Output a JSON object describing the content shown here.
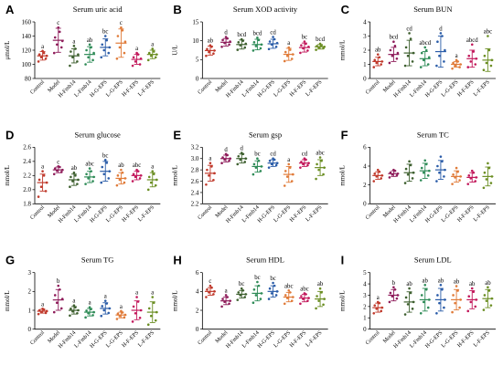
{
  "figure": {
    "groups": [
      "Control",
      "Model",
      "H-Fmb14",
      "L-Fmb14",
      "H-G-EPS",
      "L-G-EPS",
      "H-F-EPS",
      "L-F-EPS"
    ],
    "colors": [
      "#c0392b",
      "#8e1c5a",
      "#3d5f2e",
      "#2e8b57",
      "#2a5ca8",
      "#e07b39",
      "#c2185b",
      "#6b8e23"
    ]
  },
  "chart_data": [
    {
      "panel": "A",
      "type": "scatter",
      "title": "Serum uric acid",
      "ylabel": "μmol/L",
      "ylim": [
        80,
        160
      ],
      "yticks": [
        80,
        100,
        120,
        140,
        160
      ],
      "letters": [
        "a",
        "c",
        "a",
        "ab",
        "bc",
        "c",
        "a",
        "a"
      ],
      "series": [
        {
          "mean": 112,
          "sd": 6,
          "points": [
            104,
            108,
            110,
            112,
            114,
            116,
            119
          ]
        },
        {
          "mean": 134,
          "sd": 17,
          "points": [
            116,
            124,
            128,
            133,
            138,
            146,
            152
          ]
        },
        {
          "mean": 112,
          "sd": 10,
          "points": [
            98,
            104,
            110,
            114,
            118,
            122,
            126
          ]
        },
        {
          "mean": 114,
          "sd": 11,
          "points": [
            100,
            106,
            110,
            116,
            120,
            124,
            128
          ]
        },
        {
          "mean": 124,
          "sd": 12,
          "points": [
            110,
            116,
            120,
            124,
            128,
            134,
            140
          ]
        },
        {
          "mean": 130,
          "sd": 20,
          "points": [
            108,
            116,
            124,
            132,
            140,
            148,
            152
          ]
        },
        {
          "mean": 107,
          "sd": 7,
          "points": [
            98,
            100,
            104,
            108,
            110,
            114,
            116
          ]
        },
        {
          "mean": 114,
          "sd": 6,
          "points": [
            106,
            110,
            112,
            114,
            116,
            118,
            122
          ]
        }
      ]
    },
    {
      "panel": "B",
      "type": "scatter",
      "title": "Serum XOD activity",
      "ylabel": "U/L",
      "ylim": [
        0,
        15
      ],
      "yticks": [
        0,
        5,
        10,
        15
      ],
      "letters": [
        "ab",
        "d",
        "bcd",
        "bcd",
        "cd",
        "a",
        "bc",
        "bcd"
      ],
      "series": [
        {
          "mean": 7.4,
          "sd": 1.2,
          "points": [
            6.0,
            6.6,
            7.0,
            7.4,
            7.8,
            8.4,
            8.8
          ]
        },
        {
          "mean": 9.6,
          "sd": 1.0,
          "points": [
            8.4,
            9.0,
            9.4,
            9.8,
            10.2,
            10.6,
            11.0
          ]
        },
        {
          "mean": 9.0,
          "sd": 1.2,
          "points": [
            7.6,
            8.2,
            8.8,
            9.2,
            9.6,
            10.0,
            10.4
          ]
        },
        {
          "mean": 9.0,
          "sd": 1.4,
          "points": [
            7.4,
            8.0,
            8.6,
            9.0,
            9.6,
            10.2,
            10.8
          ]
        },
        {
          "mean": 9.2,
          "sd": 1.2,
          "points": [
            7.8,
            8.4,
            9.0,
            9.4,
            9.8,
            10.4,
            11.0
          ]
        },
        {
          "mean": 6.4,
          "sd": 1.6,
          "points": [
            4.6,
            5.2,
            6.0,
            6.4,
            7.0,
            7.6,
            8.2
          ]
        },
        {
          "mean": 8.2,
          "sd": 1.2,
          "points": [
            6.8,
            7.4,
            8.0,
            8.4,
            8.8,
            9.2,
            9.8
          ]
        },
        {
          "mean": 8.4,
          "sd": 0.6,
          "points": [
            7.6,
            8.0,
            8.2,
            8.4,
            8.6,
            8.8,
            9.2
          ]
        }
      ]
    },
    {
      "panel": "C",
      "type": "scatter",
      "title": "Serum BUN",
      "ylabel": "mmol/L",
      "ylim": [
        0,
        4
      ],
      "yticks": [
        0,
        1,
        2,
        3,
        4
      ],
      "letters": [
        "ab",
        "bcd",
        "cd",
        "abcd",
        "d",
        "a",
        "abcd",
        "abc"
      ],
      "series": [
        {
          "mean": 1.2,
          "sd": 0.3,
          "points": [
            0.8,
            1.0,
            1.1,
            1.2,
            1.3,
            1.5,
            1.7
          ]
        },
        {
          "mean": 1.7,
          "sd": 0.5,
          "points": [
            1.1,
            1.4,
            1.6,
            1.8,
            2.0,
            2.3,
            2.6
          ]
        },
        {
          "mean": 1.8,
          "sd": 0.9,
          "points": [
            0.9,
            1.2,
            1.6,
            1.8,
            2.2,
            2.8,
            3.2
          ]
        },
        {
          "mean": 1.4,
          "sd": 0.5,
          "points": [
            0.8,
            1.0,
            1.3,
            1.5,
            1.8,
            2.0,
            2.2
          ]
        },
        {
          "mean": 1.9,
          "sd": 1.1,
          "points": [
            0.9,
            1.2,
            1.6,
            2.0,
            2.6,
            3.0,
            3.2
          ]
        },
        {
          "mean": 1.0,
          "sd": 0.2,
          "points": [
            0.7,
            0.8,
            0.9,
            1.0,
            1.1,
            1.2,
            1.3
          ]
        },
        {
          "mean": 1.4,
          "sd": 0.6,
          "points": [
            0.8,
            1.0,
            1.2,
            1.4,
            1.6,
            1.9,
            2.4
          ]
        },
        {
          "mean": 1.3,
          "sd": 0.8,
          "points": [
            0.6,
            0.9,
            1.1,
            1.3,
            1.6,
            2.0,
            3.0
          ]
        }
      ]
    },
    {
      "panel": "D",
      "type": "scatter",
      "title": "Serum glucose",
      "ylabel": "mmol/L",
      "ylim": [
        1.8,
        2.6
      ],
      "yticks": [
        1.8,
        2.0,
        2.2,
        2.4,
        2.6
      ],
      "letters": [
        "a",
        "c",
        "ab",
        "abc",
        "bc",
        "ab",
        "abc",
        "a"
      ],
      "series": [
        {
          "mean": 2.1,
          "sd": 0.12,
          "points": [
            1.9,
            1.98,
            2.04,
            2.1,
            2.14,
            2.2,
            2.26
          ]
        },
        {
          "mean": 2.28,
          "sd": 0.04,
          "points": [
            2.22,
            2.25,
            2.27,
            2.28,
            2.3,
            2.32,
            2.33
          ]
        },
        {
          "mean": 2.14,
          "sd": 0.08,
          "points": [
            2.04,
            2.08,
            2.12,
            2.14,
            2.18,
            2.2,
            2.24
          ]
        },
        {
          "mean": 2.18,
          "sd": 0.08,
          "points": [
            2.08,
            2.12,
            2.16,
            2.18,
            2.22,
            2.26,
            2.3
          ]
        },
        {
          "mean": 2.26,
          "sd": 0.14,
          "points": [
            2.1,
            2.16,
            2.22,
            2.26,
            2.32,
            2.38,
            2.42
          ]
        },
        {
          "mean": 2.16,
          "sd": 0.08,
          "points": [
            2.06,
            2.1,
            2.14,
            2.16,
            2.2,
            2.24,
            2.28
          ]
        },
        {
          "mean": 2.2,
          "sd": 0.06,
          "points": [
            2.12,
            2.16,
            2.18,
            2.2,
            2.22,
            2.26,
            2.28
          ]
        },
        {
          "mean": 2.14,
          "sd": 0.1,
          "points": [
            2.0,
            2.06,
            2.1,
            2.14,
            2.18,
            2.22,
            2.26
          ]
        }
      ]
    },
    {
      "panel": "E",
      "type": "scatter",
      "title": "Serum gsp",
      "ylabel": "mmol/L",
      "ylim": [
        2.2,
        3.2
      ],
      "yticks": [
        2.2,
        2.4,
        2.6,
        2.8,
        3.0,
        3.2
      ],
      "letters": [
        "a",
        "d",
        "d",
        "bc",
        "cd",
        "a",
        "cd",
        "abc"
      ],
      "series": [
        {
          "mean": 2.74,
          "sd": 0.14,
          "points": [
            2.54,
            2.62,
            2.7,
            2.74,
            2.8,
            2.86,
            2.92
          ]
        },
        {
          "mean": 3.0,
          "sd": 0.06,
          "points": [
            2.92,
            2.96,
            2.98,
            3.0,
            3.02,
            3.06,
            3.08
          ]
        },
        {
          "mean": 3.0,
          "sd": 0.08,
          "points": [
            2.9,
            2.94,
            2.98,
            3.0,
            3.04,
            3.08,
            3.1
          ]
        },
        {
          "mean": 2.86,
          "sd": 0.1,
          "points": [
            2.72,
            2.78,
            2.84,
            2.86,
            2.9,
            2.96,
            3.0
          ]
        },
        {
          "mean": 2.92,
          "sd": 0.06,
          "points": [
            2.84,
            2.88,
            2.9,
            2.92,
            2.96,
            2.98,
            3.0
          ]
        },
        {
          "mean": 2.72,
          "sd": 0.14,
          "points": [
            2.52,
            2.6,
            2.68,
            2.72,
            2.78,
            2.84,
            2.9
          ]
        },
        {
          "mean": 2.92,
          "sd": 0.06,
          "points": [
            2.84,
            2.88,
            2.9,
            2.92,
            2.94,
            2.98,
            3.0
          ]
        },
        {
          "mean": 2.84,
          "sd": 0.14,
          "points": [
            2.64,
            2.72,
            2.8,
            2.84,
            2.9,
            2.96,
            3.02
          ]
        }
      ]
    },
    {
      "panel": "F",
      "type": "scatter",
      "title": "Serum TC",
      "ylabel": "mmol/L",
      "ylim": [
        0,
        6
      ],
      "yticks": [
        0,
        2,
        4,
        6
      ],
      "letters": [
        "",
        "",
        "",
        "",
        "",
        "",
        "",
        ""
      ],
      "series": [
        {
          "mean": 3.0,
          "sd": 0.4,
          "points": [
            2.4,
            2.7,
            2.9,
            3.0,
            3.2,
            3.4,
            3.6
          ]
        },
        {
          "mean": 3.2,
          "sd": 0.3,
          "points": [
            2.8,
            3.0,
            3.1,
            3.2,
            3.3,
            3.5,
            3.6
          ]
        },
        {
          "mean": 3.3,
          "sd": 0.9,
          "points": [
            2.2,
            2.7,
            3.1,
            3.3,
            3.7,
            4.1,
            4.5
          ]
        },
        {
          "mean": 3.5,
          "sd": 0.8,
          "points": [
            2.5,
            3.0,
            3.3,
            3.5,
            3.8,
            4.2,
            4.6
          ]
        },
        {
          "mean": 3.6,
          "sd": 1.0,
          "points": [
            2.4,
            2.9,
            3.3,
            3.6,
            4.0,
            4.5,
            5.0
          ]
        },
        {
          "mean": 2.9,
          "sd": 0.6,
          "points": [
            2.1,
            2.5,
            2.8,
            2.9,
            3.1,
            3.4,
            3.8
          ]
        },
        {
          "mean": 2.8,
          "sd": 0.5,
          "points": [
            2.1,
            2.4,
            2.7,
            2.8,
            3.0,
            3.3,
            3.5
          ]
        },
        {
          "mean": 2.9,
          "sd": 1.0,
          "points": [
            1.7,
            2.2,
            2.6,
            2.9,
            3.3,
            3.8,
            4.3
          ]
        }
      ]
    },
    {
      "panel": "G",
      "type": "scatter",
      "title": "Serum TG",
      "ylabel": "mmol/L",
      "ylim": [
        0,
        3
      ],
      "yticks": [
        0,
        1,
        2,
        3
      ],
      "letters": [
        "a",
        "b",
        "a",
        "a",
        "a",
        "a",
        "a",
        "a"
      ],
      "series": [
        {
          "mean": 0.95,
          "sd": 0.1,
          "points": [
            0.8,
            0.86,
            0.92,
            0.96,
            1.0,
            1.04,
            1.08
          ]
        },
        {
          "mean": 1.55,
          "sd": 0.55,
          "points": [
            0.9,
            1.1,
            1.4,
            1.6,
            1.8,
            2.1,
            2.3
          ]
        },
        {
          "mean": 1.0,
          "sd": 0.2,
          "points": [
            0.72,
            0.84,
            0.94,
            1.0,
            1.08,
            1.16,
            1.26
          ]
        },
        {
          "mean": 0.9,
          "sd": 0.2,
          "points": [
            0.62,
            0.74,
            0.84,
            0.9,
            0.98,
            1.06,
            1.16
          ]
        },
        {
          "mean": 1.1,
          "sd": 0.3,
          "points": [
            0.7,
            0.86,
            1.0,
            1.1,
            1.22,
            1.36,
            1.5
          ]
        },
        {
          "mean": 0.75,
          "sd": 0.15,
          "points": [
            0.54,
            0.62,
            0.7,
            0.76,
            0.82,
            0.88,
            0.96
          ]
        },
        {
          "mean": 1.0,
          "sd": 0.5,
          "points": [
            0.4,
            0.6,
            0.84,
            1.0,
            1.2,
            1.46,
            1.7
          ]
        },
        {
          "mean": 0.9,
          "sd": 0.55,
          "points": [
            0.24,
            0.46,
            0.7,
            0.9,
            1.1,
            1.4,
            1.7
          ]
        }
      ]
    },
    {
      "panel": "H",
      "type": "scatter",
      "title": "Serum HDL",
      "ylabel": "mmol/L",
      "ylim": [
        0,
        6
      ],
      "yticks": [
        0,
        2,
        4,
        6
      ],
      "letters": [
        "c",
        "a",
        "bc",
        "bc",
        "bc",
        "abc",
        "abc",
        "ab"
      ],
      "series": [
        {
          "mean": 4.0,
          "sd": 0.4,
          "points": [
            3.4,
            3.7,
            3.9,
            4.0,
            4.2,
            4.4,
            4.6
          ]
        },
        {
          "mean": 3.0,
          "sd": 0.4,
          "points": [
            2.4,
            2.7,
            2.9,
            3.0,
            3.2,
            3.4,
            3.6
          ]
        },
        {
          "mean": 3.7,
          "sd": 0.4,
          "points": [
            3.1,
            3.4,
            3.6,
            3.7,
            3.9,
            4.1,
            4.3
          ]
        },
        {
          "mean": 3.8,
          "sd": 0.8,
          "points": [
            2.8,
            3.2,
            3.6,
            3.8,
            4.2,
            4.6,
            5.0
          ]
        },
        {
          "mean": 4.0,
          "sd": 0.6,
          "points": [
            3.2,
            3.6,
            3.8,
            4.0,
            4.3,
            4.6,
            4.9
          ]
        },
        {
          "mean": 3.4,
          "sd": 0.5,
          "points": [
            2.7,
            3.0,
            3.3,
            3.4,
            3.6,
            3.9,
            4.1
          ]
        },
        {
          "mean": 3.3,
          "sd": 0.4,
          "points": [
            2.7,
            3.0,
            3.2,
            3.3,
            3.5,
            3.7,
            3.8
          ]
        },
        {
          "mean": 3.2,
          "sd": 0.8,
          "points": [
            2.2,
            2.6,
            3.0,
            3.2,
            3.5,
            3.9,
            4.3
          ]
        }
      ]
    },
    {
      "panel": "I",
      "type": "scatter",
      "title": "Serum LDL",
      "ylabel": "mmol/L",
      "ylim": [
        0,
        5
      ],
      "yticks": [
        0,
        1,
        2,
        3,
        4,
        5
      ],
      "letters": [
        "a",
        "b",
        "ab",
        "ab",
        "ab",
        "ab",
        "ab",
        "ab"
      ],
      "series": [
        {
          "mean": 1.9,
          "sd": 0.4,
          "points": [
            1.4,
            1.6,
            1.8,
            1.9,
            2.1,
            2.3,
            2.4
          ]
        },
        {
          "mean": 3.0,
          "sd": 0.5,
          "points": [
            2.4,
            2.7,
            2.9,
            3.0,
            3.2,
            3.5,
            3.7
          ]
        },
        {
          "mean": 2.4,
          "sd": 0.9,
          "points": [
            1.3,
            1.8,
            2.2,
            2.4,
            2.8,
            3.2,
            3.6
          ]
        },
        {
          "mean": 2.6,
          "sd": 1.0,
          "points": [
            1.4,
            1.9,
            2.4,
            2.6,
            3.0,
            3.5,
            3.9
          ]
        },
        {
          "mean": 2.6,
          "sd": 1.0,
          "points": [
            1.4,
            1.9,
            2.3,
            2.6,
            3.0,
            3.5,
            3.9
          ]
        },
        {
          "mean": 2.6,
          "sd": 0.9,
          "points": [
            1.5,
            1.9,
            2.3,
            2.6,
            3.0,
            3.4,
            3.8
          ]
        },
        {
          "mean": 2.6,
          "sd": 0.8,
          "points": [
            1.6,
            2.0,
            2.4,
            2.6,
            2.9,
            3.3,
            3.6
          ]
        },
        {
          "mean": 2.7,
          "sd": 0.8,
          "points": [
            1.7,
            2.1,
            2.5,
            2.7,
            3.0,
            3.4,
            3.7
          ]
        }
      ]
    }
  ]
}
